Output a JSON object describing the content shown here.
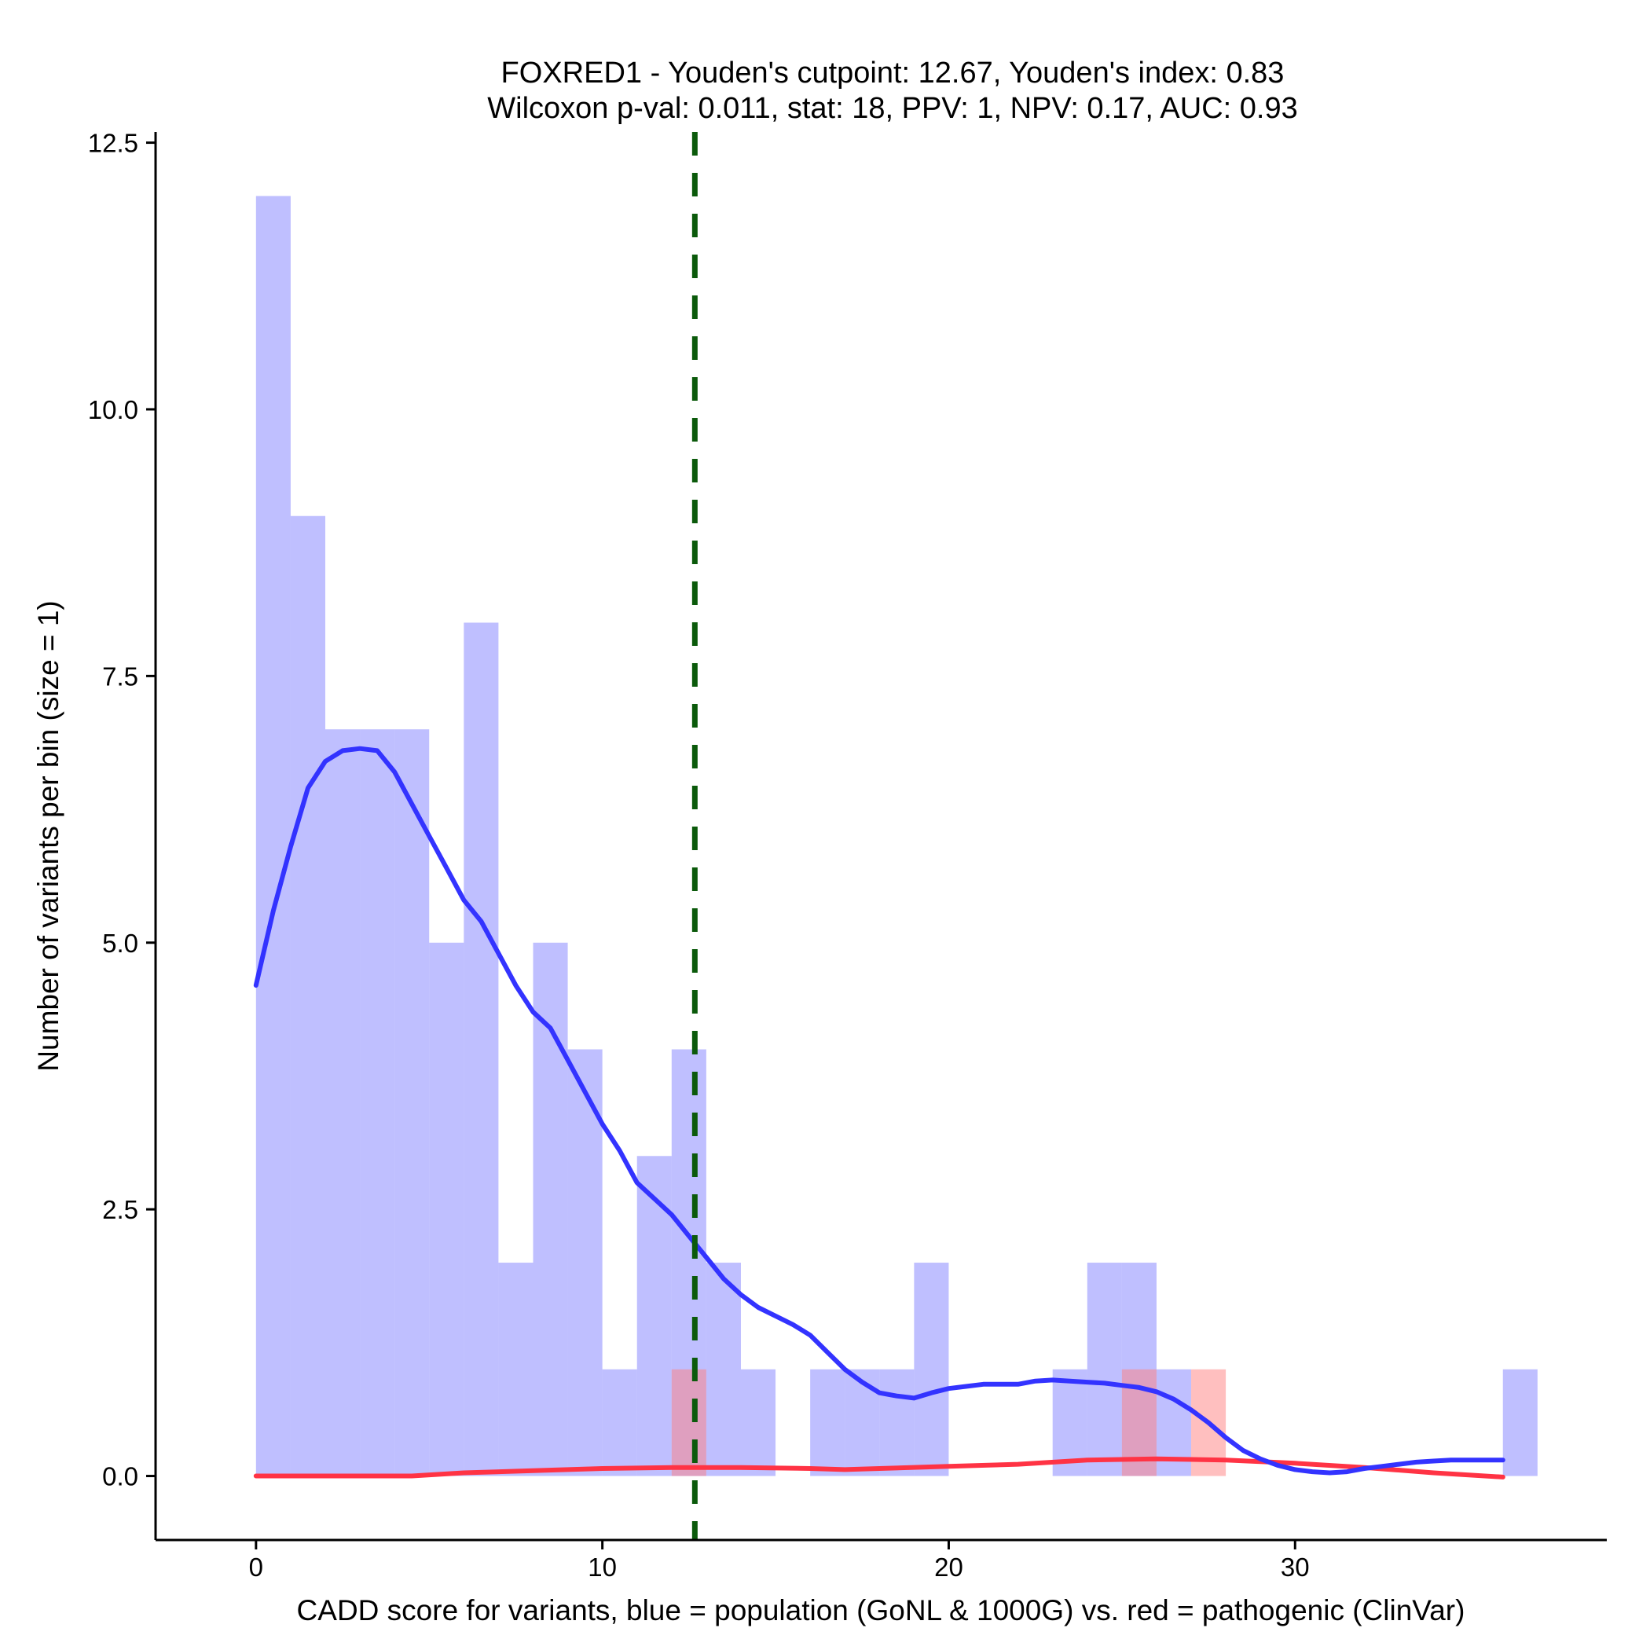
{
  "chart_data": {
    "type": "histogram-with-density",
    "title_line1": "FOXRED1 - Youden's cutpoint: 12.67, Youden's index: 0.83",
    "title_line2": "Wilcoxon p-val: 0.011, stat: 18, PPV: 1, NPV: 0.17, AUC: 0.93",
    "xlabel": "CADD score for variants, blue = population (GoNL & 1000G) vs. red = pathogenic (ClinVar)",
    "ylabel": "Number of variants per bin (size = 1)",
    "xlim": [
      -2.9,
      39
    ],
    "ylim": [
      -0.6,
      12.6
    ],
    "x_ticks": [
      0,
      10,
      20,
      30
    ],
    "x_tick_labels": [
      "0",
      "10",
      "20",
      "30"
    ],
    "y_ticks": [
      0,
      2.5,
      5,
      7.5,
      10,
      12.5
    ],
    "y_tick_labels": [
      "0.0",
      "2.5",
      "5.0",
      "7.5",
      "10.0",
      "12.5"
    ],
    "cutpoint": 12.67,
    "colors": {
      "population_bar": "#8080ff",
      "population_bar_opacity": 0.5,
      "pathogenic_bar": "#ff7f7f",
      "pathogenic_bar_opacity": 0.5,
      "population_line": "#3333ff",
      "pathogenic_line": "#ff3344",
      "cutpoint_line": "#0b5a0b"
    },
    "population_bins": [
      {
        "x": 0,
        "count": 12
      },
      {
        "x": 1,
        "count": 9
      },
      {
        "x": 2,
        "count": 7
      },
      {
        "x": 3,
        "count": 7
      },
      {
        "x": 4,
        "count": 7
      },
      {
        "x": 5,
        "count": 5
      },
      {
        "x": 6,
        "count": 8
      },
      {
        "x": 7,
        "count": 2
      },
      {
        "x": 8,
        "count": 5
      },
      {
        "x": 9,
        "count": 4
      },
      {
        "x": 10,
        "count": 1
      },
      {
        "x": 11,
        "count": 3
      },
      {
        "x": 12,
        "count": 4
      },
      {
        "x": 13,
        "count": 2
      },
      {
        "x": 14,
        "count": 1
      },
      {
        "x": 16,
        "count": 1
      },
      {
        "x": 17,
        "count": 1
      },
      {
        "x": 18,
        "count": 1
      },
      {
        "x": 19,
        "count": 2
      },
      {
        "x": 23,
        "count": 1
      },
      {
        "x": 24,
        "count": 2
      },
      {
        "x": 25,
        "count": 2
      },
      {
        "x": 26,
        "count": 1
      },
      {
        "x": 36,
        "count": 1
      }
    ],
    "pathogenic_bins": [
      {
        "x": 12,
        "count": 1
      },
      {
        "x": 25,
        "count": 1
      },
      {
        "x": 27,
        "count": 1
      }
    ],
    "population_density": [
      [
        0,
        4.6
      ],
      [
        0.5,
        5.3
      ],
      [
        1,
        5.9
      ],
      [
        1.5,
        6.45
      ],
      [
        2,
        6.7
      ],
      [
        2.5,
        6.8
      ],
      [
        3,
        6.82
      ],
      [
        3.5,
        6.8
      ],
      [
        4,
        6.6
      ],
      [
        4.5,
        6.3
      ],
      [
        5,
        6.0
      ],
      [
        5.5,
        5.7
      ],
      [
        6,
        5.4
      ],
      [
        6.5,
        5.2
      ],
      [
        7,
        4.9
      ],
      [
        7.5,
        4.6
      ],
      [
        8,
        4.35
      ],
      [
        8.5,
        4.2
      ],
      [
        9,
        3.9
      ],
      [
        9.5,
        3.6
      ],
      [
        10,
        3.3
      ],
      [
        10.5,
        3.05
      ],
      [
        11,
        2.75
      ],
      [
        11.5,
        2.6
      ],
      [
        12,
        2.45
      ],
      [
        12.5,
        2.25
      ],
      [
        13,
        2.05
      ],
      [
        13.5,
        1.85
      ],
      [
        14,
        1.7
      ],
      [
        14.5,
        1.58
      ],
      [
        15,
        1.5
      ],
      [
        15.5,
        1.42
      ],
      [
        16,
        1.32
      ],
      [
        16.5,
        1.16
      ],
      [
        17,
        1.0
      ],
      [
        17.5,
        0.88
      ],
      [
        18,
        0.78
      ],
      [
        18.5,
        0.75
      ],
      [
        19,
        0.73
      ],
      [
        19.5,
        0.78
      ],
      [
        20,
        0.82
      ],
      [
        20.5,
        0.84
      ],
      [
        21,
        0.86
      ],
      [
        21.5,
        0.86
      ],
      [
        22,
        0.86
      ],
      [
        22.5,
        0.89
      ],
      [
        23,
        0.9
      ],
      [
        23.5,
        0.89
      ],
      [
        24,
        0.88
      ],
      [
        24.5,
        0.87
      ],
      [
        25,
        0.85
      ],
      [
        25.5,
        0.83
      ],
      [
        26,
        0.79
      ],
      [
        26.5,
        0.72
      ],
      [
        27,
        0.62
      ],
      [
        27.5,
        0.5
      ],
      [
        28,
        0.36
      ],
      [
        28.5,
        0.24
      ],
      [
        29,
        0.16
      ],
      [
        29.5,
        0.1
      ],
      [
        30,
        0.06
      ],
      [
        30.5,
        0.04
      ],
      [
        31,
        0.03
      ],
      [
        31.5,
        0.04
      ],
      [
        32,
        0.07
      ],
      [
        32.5,
        0.09
      ],
      [
        33,
        0.11
      ],
      [
        33.5,
        0.13
      ],
      [
        34,
        0.14
      ],
      [
        34.5,
        0.15
      ],
      [
        35,
        0.15
      ],
      [
        36,
        0.15
      ]
    ],
    "pathogenic_density": [
      [
        0,
        0.0
      ],
      [
        2,
        0.0
      ],
      [
        4.5,
        0.0
      ],
      [
        6,
        0.03
      ],
      [
        8,
        0.05
      ],
      [
        10,
        0.07
      ],
      [
        12,
        0.08
      ],
      [
        14,
        0.08
      ],
      [
        16,
        0.07
      ],
      [
        17,
        0.06
      ],
      [
        18,
        0.07
      ],
      [
        20,
        0.09
      ],
      [
        22,
        0.11
      ],
      [
        24,
        0.15
      ],
      [
        26,
        0.16
      ],
      [
        28,
        0.15
      ],
      [
        30,
        0.12
      ],
      [
        32,
        0.08
      ],
      [
        34,
        0.03
      ],
      [
        36,
        -0.01
      ]
    ]
  }
}
